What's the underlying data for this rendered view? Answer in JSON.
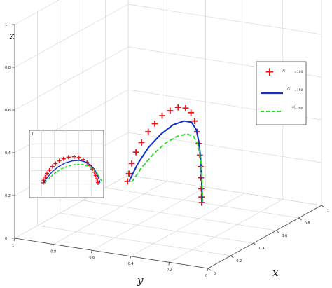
{
  "chart_data": {
    "type": "line",
    "projection": "3d",
    "axes": {
      "x": {
        "label": "x",
        "ticks": [
          "0",
          "0.2",
          "0.4",
          "0.6",
          "0.8",
          "1"
        ],
        "range": [
          0,
          1
        ]
      },
      "y": {
        "label": "y",
        "ticks": [
          "0",
          "0.2",
          "0.4",
          "0.6",
          "0.8",
          "1"
        ],
        "range": [
          0,
          1
        ]
      },
      "z": {
        "label": "z",
        "ticks": [
          "0",
          "0.2",
          "0.4",
          "0.6",
          "0.8",
          "1"
        ],
        "range": [
          0,
          1
        ]
      }
    },
    "grid": true,
    "legend": {
      "placement": "right",
      "entries": [
        {
          "symbol": "N",
          "value": "=100",
          "marker": "plus",
          "color": "#e8121a"
        },
        {
          "symbol": "N",
          "value": "=150",
          "marker": "solid-line",
          "color": "#1030c8"
        },
        {
          "symbol": "N",
          "value": "=200",
          "marker": "dashed-line",
          "color": "#22dd22"
        }
      ]
    },
    "series": [
      {
        "name": "N =100",
        "style": "plus-markers",
        "color": "#e8121a",
        "points": [
          [
            0.47,
            0.02,
            0.02
          ],
          [
            0.47,
            0.03,
            0.08
          ],
          [
            0.47,
            0.05,
            0.16
          ],
          [
            0.47,
            0.08,
            0.25
          ],
          [
            0.47,
            0.12,
            0.33
          ],
          [
            0.47,
            0.17,
            0.42
          ],
          [
            0.47,
            0.22,
            0.49
          ],
          [
            0.47,
            0.28,
            0.56
          ],
          [
            0.47,
            0.35,
            0.61
          ],
          [
            0.47,
            0.43,
            0.65
          ],
          [
            0.47,
            0.52,
            0.66
          ],
          [
            0.47,
            0.6,
            0.64
          ],
          [
            0.47,
            0.67,
            0.59
          ],
          [
            0.47,
            0.73,
            0.52
          ],
          [
            0.47,
            0.78,
            0.44
          ],
          [
            0.47,
            0.82,
            0.36
          ],
          [
            0.47,
            0.85,
            0.28
          ],
          [
            0.47,
            0.87,
            0.2
          ],
          [
            0.47,
            0.89,
            0.12
          ],
          [
            0.47,
            0.9,
            0.06
          ],
          [
            0.47,
            0.91,
            0.02
          ]
        ]
      },
      {
        "name": "N =150",
        "style": "solid-line",
        "color": "#1030c8",
        "points": [
          [
            0.47,
            0.03,
            0.02
          ],
          [
            0.47,
            0.09,
            0.16
          ],
          [
            0.47,
            0.17,
            0.3
          ],
          [
            0.47,
            0.27,
            0.42
          ],
          [
            0.47,
            0.38,
            0.51
          ],
          [
            0.47,
            0.5,
            0.56
          ],
          [
            0.47,
            0.61,
            0.57
          ],
          [
            0.47,
            0.71,
            0.53
          ],
          [
            0.47,
            0.79,
            0.45
          ],
          [
            0.47,
            0.85,
            0.35
          ],
          [
            0.47,
            0.89,
            0.24
          ],
          [
            0.47,
            0.92,
            0.13
          ],
          [
            0.47,
            0.94,
            0.02
          ]
        ]
      },
      {
        "name": "N =200",
        "style": "dashed-line",
        "color": "#22dd22",
        "points": [
          [
            0.47,
            0.05,
            0.02
          ],
          [
            0.47,
            0.12,
            0.14
          ],
          [
            0.47,
            0.21,
            0.26
          ],
          [
            0.47,
            0.31,
            0.36
          ],
          [
            0.47,
            0.42,
            0.43
          ],
          [
            0.47,
            0.54,
            0.47
          ],
          [
            0.47,
            0.65,
            0.47
          ],
          [
            0.47,
            0.75,
            0.43
          ],
          [
            0.47,
            0.83,
            0.36
          ],
          [
            0.47,
            0.89,
            0.27
          ],
          [
            0.47,
            0.93,
            0.17
          ],
          [
            0.47,
            0.96,
            0.08
          ],
          [
            0.47,
            0.97,
            0.02
          ]
        ]
      }
    ],
    "inset": {
      "description_visible": "zoomed 2D view of the same three curves",
      "tick_y_top": "1"
    }
  }
}
